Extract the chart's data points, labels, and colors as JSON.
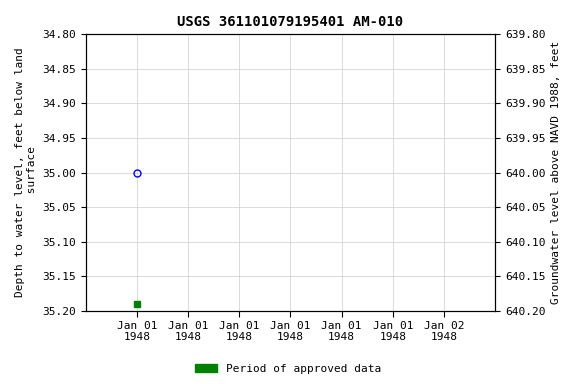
{
  "title": "USGS 361101079195401 AM-010",
  "left_ylabel": "Depth to water level, feet below land\n surface",
  "right_ylabel": "Groundwater level above NAVD 1988, feet",
  "ylim_left": [
    34.8,
    35.2
  ],
  "ylim_right": [
    639.8,
    640.2
  ],
  "yticks_left": [
    34.8,
    34.85,
    34.9,
    34.95,
    35.0,
    35.05,
    35.1,
    35.15,
    35.2
  ],
  "yticks_right": [
    639.8,
    639.85,
    639.9,
    639.95,
    640.0,
    640.05,
    640.1,
    640.15,
    640.2
  ],
  "ytick_labels_left": [
    "34.80",
    "34.85",
    "34.90",
    "34.95",
    "35.00",
    "35.05",
    "35.10",
    "35.15",
    "35.20"
  ],
  "ytick_labels_right": [
    "639.80",
    "639.85",
    "639.90",
    "639.95",
    "640.00",
    "640.05",
    "640.10",
    "640.15",
    "640.20"
  ],
  "point1_x_hours": 0,
  "point1_value": 35.0,
  "point1_color": "#0000ff",
  "point2_x_hours": 0,
  "point2_value": 35.19,
  "point2_color": "#008000",
  "legend_label": "Period of approved data",
  "legend_color": "#008000",
  "bg_color": "#ffffff",
  "grid_color": "#cccccc",
  "font_family": "monospace",
  "title_fontsize": 10,
  "label_fontsize": 8,
  "tick_fontsize": 8,
  "xtick_labels": [
    "Jan 01\n1948",
    "Jan 01\n1948",
    "Jan 01\n1948",
    "Jan 01\n1948",
    "Jan 01\n1948",
    "Jan 01\n1948",
    "Jan 02\n1948"
  ],
  "xtick_hours": [
    0,
    4,
    8,
    12,
    16,
    20,
    24
  ]
}
